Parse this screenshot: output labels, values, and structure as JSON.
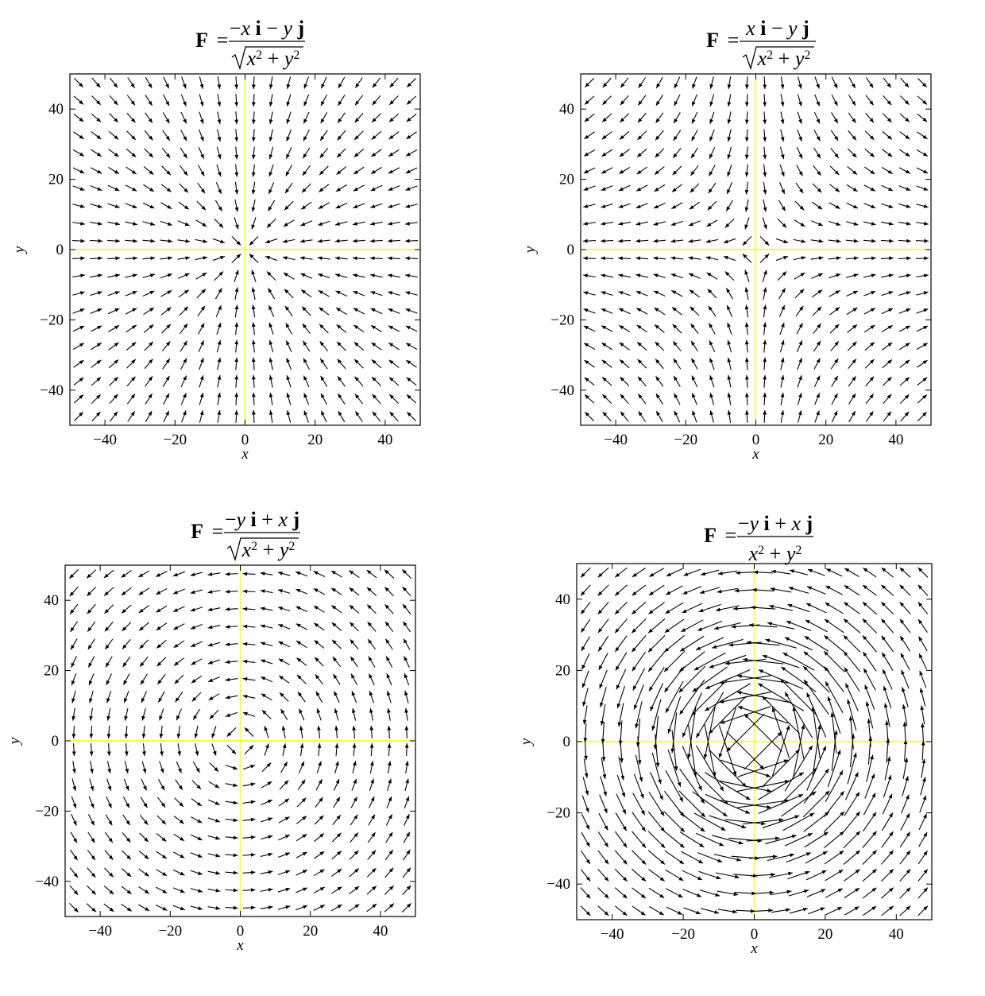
{
  "figure": {
    "background": "#ffffff",
    "axis_line_color": "#ffff00",
    "arrow_color": "#000000"
  },
  "chart_data": [
    {
      "type": "quiver",
      "title": {
        "lhs": "F",
        "equals": "=",
        "numerator": "−x i − y j",
        "numerator_parts": [
          "−",
          "x",
          "i",
          "−",
          "y",
          "j"
        ],
        "denominator": "√(x² + y²)",
        "denominator_sqrt": true
      },
      "xlabel": "x",
      "ylabel": "y",
      "xlim": [
        -50,
        50
      ],
      "ylim": [
        -50,
        50
      ],
      "xticks": [
        -40,
        -20,
        0,
        20,
        40
      ],
      "yticks": [
        -40,
        -20,
        0,
        20,
        40
      ],
      "xtick_labels": [
        "−40",
        "−20",
        "0",
        "20",
        "40"
      ],
      "ytick_labels": [
        "−40",
        "−20",
        "0",
        "20",
        "40"
      ],
      "field": {
        "fx": "-x/r",
        "fy": "-y/r",
        "normalized": true
      },
      "grid_points": {
        "start": -47.5,
        "step": 5,
        "count": 20
      }
    },
    {
      "type": "quiver",
      "title": {
        "lhs": "F",
        "equals": "=",
        "numerator": "x i − y j",
        "numerator_parts": [
          "",
          "x",
          "i",
          "−",
          "y",
          "j"
        ],
        "denominator": "√(x² + y²)",
        "denominator_sqrt": true
      },
      "xlabel": "x",
      "ylabel": "y",
      "xlim": [
        -50,
        50
      ],
      "ylim": [
        -50,
        50
      ],
      "xticks": [
        -40,
        -20,
        0,
        20,
        40
      ],
      "yticks": [
        -40,
        -20,
        0,
        20,
        40
      ],
      "xtick_labels": [
        "−40",
        "−20",
        "0",
        "20",
        "40"
      ],
      "ytick_labels": [
        "−40",
        "−20",
        "0",
        "20",
        "40"
      ],
      "field": {
        "fx": "x/r",
        "fy": "-y/r",
        "normalized": true
      },
      "grid_points": {
        "start": -47.5,
        "step": 5,
        "count": 20
      }
    },
    {
      "type": "quiver",
      "title": {
        "lhs": "F",
        "equals": "=",
        "numerator": "−y i + x j",
        "numerator_parts": [
          "−",
          "y",
          "i",
          "+",
          "x",
          "j"
        ],
        "denominator": "√(x² + y²)",
        "denominator_sqrt": true
      },
      "xlabel": "x",
      "ylabel": "y",
      "xlim": [
        -50,
        50
      ],
      "ylim": [
        -50,
        50
      ],
      "xticks": [
        -40,
        -20,
        0,
        20,
        40
      ],
      "yticks": [
        -40,
        -20,
        0,
        20,
        40
      ],
      "xtick_labels": [
        "−40",
        "−20",
        "0",
        "20",
        "40"
      ],
      "ytick_labels": [
        "−40",
        "−20",
        "0",
        "20",
        "40"
      ],
      "field": {
        "fx": "-y/r",
        "fy": "x/r",
        "normalized": true
      },
      "grid_points": {
        "start": -47.5,
        "step": 5,
        "count": 20
      }
    },
    {
      "type": "quiver",
      "title": {
        "lhs": "F",
        "equals": "=",
        "numerator": "−y i + x j",
        "numerator_parts": [
          "−",
          "y",
          "i",
          "+",
          "x",
          "j"
        ],
        "denominator": "x² + y²",
        "denominator_sqrt": false
      },
      "xlabel": "x",
      "ylabel": "y",
      "xlim": [
        -50,
        50
      ],
      "ylim": [
        -50,
        50
      ],
      "xticks": [
        -40,
        -20,
        0,
        20,
        40
      ],
      "yticks": [
        -40,
        -20,
        0,
        20,
        40
      ],
      "xtick_labels": [
        "−40",
        "−20",
        "0",
        "20",
        "40"
      ],
      "ytick_labels": [
        "−40",
        "−20",
        "0",
        "20",
        "40"
      ],
      "field": {
        "fx": "-y/r²",
        "fy": "x/r²",
        "normalized": false
      },
      "grid_points": {
        "start": -47.5,
        "step": 5,
        "count": 20
      }
    }
  ]
}
